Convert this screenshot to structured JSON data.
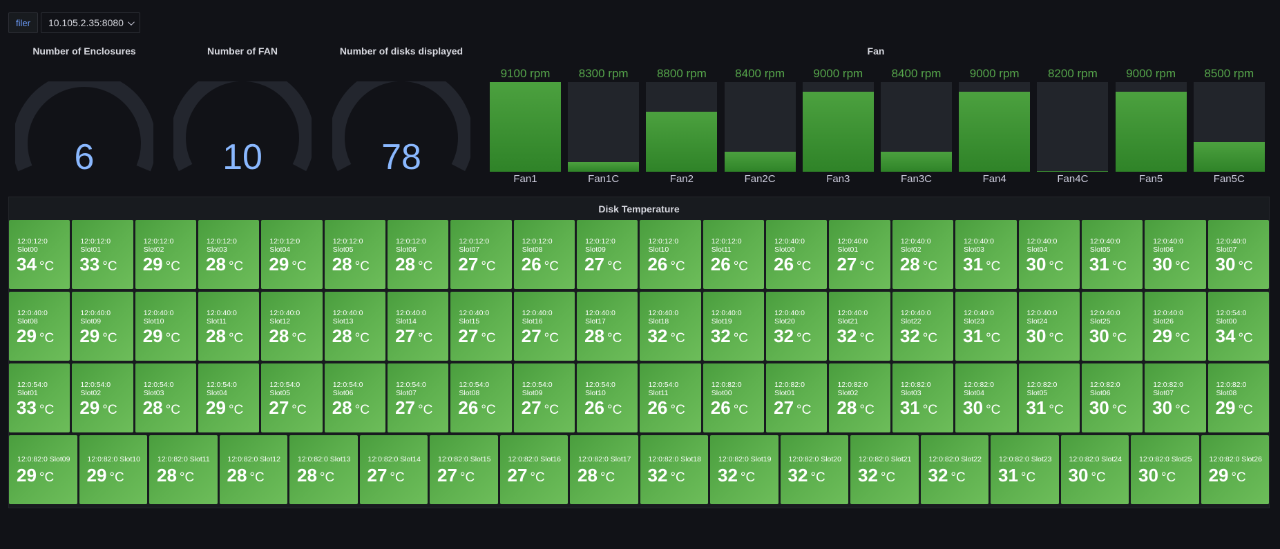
{
  "variable": {
    "label": "filer",
    "value": "10.105.2.35:8080"
  },
  "stats": [
    {
      "title": "Number of Enclosures",
      "value": "6"
    },
    {
      "title": "Number of FAN",
      "value": "10"
    },
    {
      "title": "Number of disks displayed",
      "value": "78"
    }
  ],
  "fan_panel": {
    "title": "Fan",
    "fans": [
      {
        "name": "Fan1",
        "rpm": "9100 rpm",
        "level": 1.0
      },
      {
        "name": "Fan1C",
        "rpm": "8300 rpm",
        "level": 0.11
      },
      {
        "name": "Fan2",
        "rpm": "8800 rpm",
        "level": 0.67
      },
      {
        "name": "Fan2C",
        "rpm": "8400 rpm",
        "level": 0.22
      },
      {
        "name": "Fan3",
        "rpm": "9000 rpm",
        "level": 0.89
      },
      {
        "name": "Fan3C",
        "rpm": "8400 rpm",
        "level": 0.22
      },
      {
        "name": "Fan4",
        "rpm": "9000 rpm",
        "level": 0.89
      },
      {
        "name": "Fan4C",
        "rpm": "8200 rpm",
        "level": 0.01
      },
      {
        "name": "Fan5",
        "rpm": "9000 rpm",
        "level": 0.89
      },
      {
        "name": "Fan5C",
        "rpm": "8500 rpm",
        "level": 0.33
      }
    ]
  },
  "disk_panel": {
    "title": "Disk Temperature",
    "unit": "°C",
    "rows": [
      [
        {
          "label": "12:0:12:0 Slot00",
          "temp": "34"
        },
        {
          "label": "12:0:12:0 Slot01",
          "temp": "33"
        },
        {
          "label": "12:0:12:0 Slot02",
          "temp": "29"
        },
        {
          "label": "12:0:12:0 Slot03",
          "temp": "28"
        },
        {
          "label": "12:0:12:0 Slot04",
          "temp": "29"
        },
        {
          "label": "12:0:12:0 Slot05",
          "temp": "28"
        },
        {
          "label": "12:0:12:0 Slot06",
          "temp": "28"
        },
        {
          "label": "12:0:12:0 Slot07",
          "temp": "27"
        },
        {
          "label": "12:0:12:0 Slot08",
          "temp": "26"
        },
        {
          "label": "12:0:12:0 Slot09",
          "temp": "27"
        },
        {
          "label": "12:0:12:0 Slot10",
          "temp": "26"
        },
        {
          "label": "12:0:12:0 Slot11",
          "temp": "26"
        },
        {
          "label": "12:0:40:0 Slot00",
          "temp": "26"
        },
        {
          "label": "12:0:40:0 Slot01",
          "temp": "27"
        },
        {
          "label": "12:0:40:0 Slot02",
          "temp": "28"
        },
        {
          "label": "12:0:40:0 Slot03",
          "temp": "31"
        },
        {
          "label": "12:0:40:0 Slot04",
          "temp": "30"
        },
        {
          "label": "12:0:40:0 Slot05",
          "temp": "31"
        },
        {
          "label": "12:0:40:0 Slot06",
          "temp": "30"
        },
        {
          "label": "12:0:40:0 Slot07",
          "temp": "30"
        }
      ],
      [
        {
          "label": "12:0:40:0 Slot08",
          "temp": "29"
        },
        {
          "label": "12:0:40:0 Slot09",
          "temp": "29"
        },
        {
          "label": "12:0:40:0 Slot10",
          "temp": "29"
        },
        {
          "label": "12:0:40:0 Slot11",
          "temp": "28"
        },
        {
          "label": "12:0:40:0 Slot12",
          "temp": "28"
        },
        {
          "label": "12:0:40:0 Slot13",
          "temp": "28"
        },
        {
          "label": "12:0:40:0 Slot14",
          "temp": "27"
        },
        {
          "label": "12:0:40:0 Slot15",
          "temp": "27"
        },
        {
          "label": "12:0:40:0 Slot16",
          "temp": "27"
        },
        {
          "label": "12:0:40:0 Slot17",
          "temp": "28"
        },
        {
          "label": "12:0:40:0 Slot18",
          "temp": "32"
        },
        {
          "label": "12:0:40:0 Slot19",
          "temp": "32"
        },
        {
          "label": "12:0:40:0 Slot20",
          "temp": "32"
        },
        {
          "label": "12:0:40:0 Slot21",
          "temp": "32"
        },
        {
          "label": "12:0:40:0 Slot22",
          "temp": "32"
        },
        {
          "label": "12:0:40:0 Slot23",
          "temp": "31"
        },
        {
          "label": "12:0:40:0 Slot24",
          "temp": "30"
        },
        {
          "label": "12:0:40:0 Slot25",
          "temp": "30"
        },
        {
          "label": "12:0:40:0 Slot26",
          "temp": "29"
        },
        {
          "label": "12:0:54:0 Slot00",
          "temp": "34"
        }
      ],
      [
        {
          "label": "12:0:54:0 Slot01",
          "temp": "33"
        },
        {
          "label": "12:0:54:0 Slot02",
          "temp": "29"
        },
        {
          "label": "12:0:54:0 Slot03",
          "temp": "28"
        },
        {
          "label": "12:0:54:0 Slot04",
          "temp": "29"
        },
        {
          "label": "12:0:54:0 Slot05",
          "temp": "27"
        },
        {
          "label": "12:0:54:0 Slot06",
          "temp": "28"
        },
        {
          "label": "12:0:54:0 Slot07",
          "temp": "27"
        },
        {
          "label": "12:0:54:0 Slot08",
          "temp": "26"
        },
        {
          "label": "12:0:54:0 Slot09",
          "temp": "27"
        },
        {
          "label": "12:0:54:0 Slot10",
          "temp": "26"
        },
        {
          "label": "12:0:54:0 Slot11",
          "temp": "26"
        },
        {
          "label": "12:0:82:0 Slot00",
          "temp": "26"
        },
        {
          "label": "12:0:82:0 Slot01",
          "temp": "27"
        },
        {
          "label": "12:0:82:0 Slot02",
          "temp": "28"
        },
        {
          "label": "12:0:82:0 Slot03",
          "temp": "31"
        },
        {
          "label": "12:0:82:0 Slot04",
          "temp": "30"
        },
        {
          "label": "12:0:82:0 Slot05",
          "temp": "31"
        },
        {
          "label": "12:0:82:0 Slot06",
          "temp": "30"
        },
        {
          "label": "12:0:82:0 Slot07",
          "temp": "30"
        },
        {
          "label": "12:0:82:0 Slot08",
          "temp": "29"
        }
      ],
      [
        {
          "label": "12:0:82:0 Slot09",
          "temp": "29"
        },
        {
          "label": "12:0:82:0 Slot10",
          "temp": "29"
        },
        {
          "label": "12:0:82:0 Slot11",
          "temp": "28"
        },
        {
          "label": "12:0:82:0 Slot12",
          "temp": "28"
        },
        {
          "label": "12:0:82:0 Slot13",
          "temp": "28"
        },
        {
          "label": "12:0:82:0 Slot14",
          "temp": "27"
        },
        {
          "label": "12:0:82:0 Slot15",
          "temp": "27"
        },
        {
          "label": "12:0:82:0 Slot16",
          "temp": "27"
        },
        {
          "label": "12:0:82:0 Slot17",
          "temp": "28"
        },
        {
          "label": "12:0:82:0 Slot18",
          "temp": "32"
        },
        {
          "label": "12:0:82:0 Slot19",
          "temp": "32"
        },
        {
          "label": "12:0:82:0 Slot20",
          "temp": "32"
        },
        {
          "label": "12:0:82:0 Slot21",
          "temp": "32"
        },
        {
          "label": "12:0:82:0 Slot22",
          "temp": "32"
        },
        {
          "label": "12:0:82:0 Slot23",
          "temp": "31"
        },
        {
          "label": "12:0:82:0 Slot24",
          "temp": "30"
        },
        {
          "label": "12:0:82:0 Slot25",
          "temp": "30"
        },
        {
          "label": "12:0:82:0 Slot26",
          "temp": "29"
        }
      ]
    ]
  },
  "colors": {
    "accent_blue": "#8ab8ff",
    "fan_green": "#56a64b",
    "tile_green": "#5fb14f"
  }
}
